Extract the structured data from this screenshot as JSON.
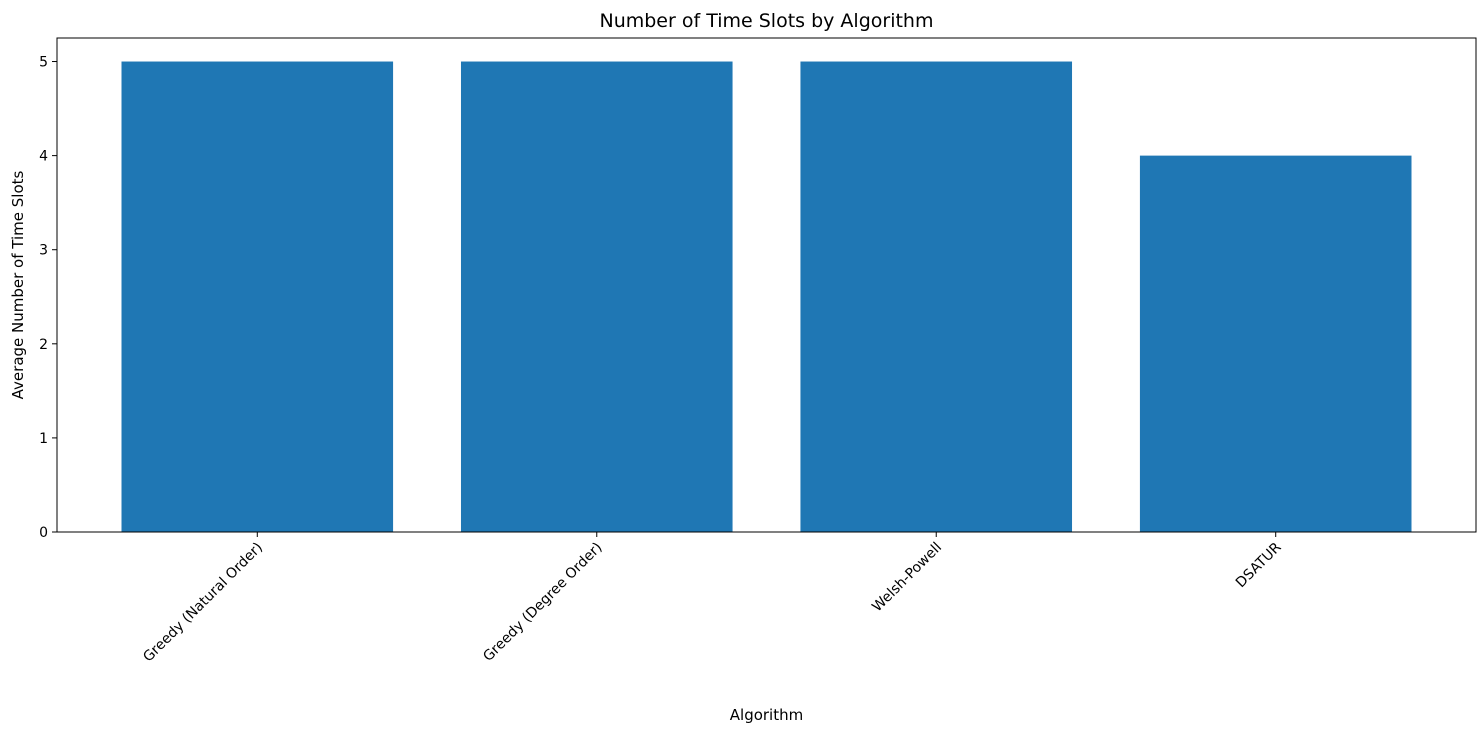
{
  "chart_data": {
    "type": "bar",
    "title": "Number of Time Slots by Algorithm",
    "xlabel": "Algorithm",
    "ylabel": "Average Number of Time Slots",
    "categories": [
      "Greedy (Natural Order)",
      "Greedy (Degree Order)",
      "Welsh-Powell",
      "DSATUR"
    ],
    "values": [
      5,
      5,
      5,
      4
    ],
    "ylim": [
      0,
      5.25
    ],
    "yticks": [
      0,
      1,
      2,
      3,
      4,
      5
    ],
    "xtick_rotation_deg": 45,
    "grid": false,
    "legend": "none",
    "bar_color": "#1f77b4"
  }
}
